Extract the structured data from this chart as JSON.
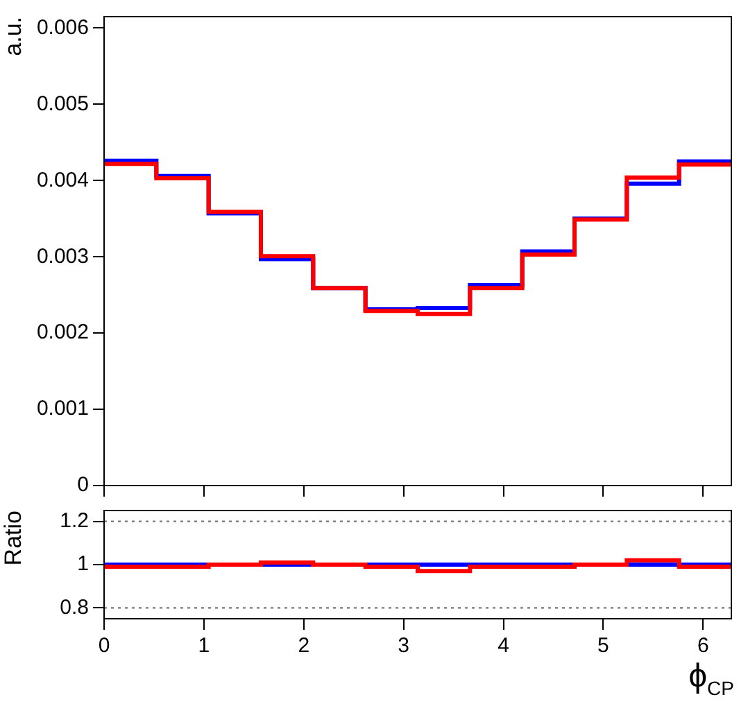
{
  "chart_data": [
    {
      "type": "histogram",
      "ylabel": "a.u.",
      "bins": [
        0,
        0.5236,
        1.0472,
        1.5708,
        2.0944,
        2.618,
        3.1416,
        3.6652,
        4.1888,
        4.7124,
        5.236,
        5.7596,
        6.2832
      ],
      "series": [
        {
          "color": "#0000ff",
          "values": [
            0.00426,
            0.00406,
            0.00357,
            0.00297,
            0.00259,
            0.00231,
            0.00233,
            0.00263,
            0.00307,
            0.0035,
            0.00396,
            0.00425
          ]
        },
        {
          "color": "#ff0000",
          "values": [
            0.00422,
            0.00403,
            0.00359,
            0.00301,
            0.00259,
            0.00229,
            0.00225,
            0.00259,
            0.00303,
            0.00349,
            0.00404,
            0.00421
          ]
        }
      ],
      "xlim": [
        0,
        6.2832
      ],
      "xticks": [
        0,
        1,
        2,
        3,
        4,
        5,
        6
      ],
      "ylim": [
        0,
        0.00615
      ],
      "yticks": [
        0,
        0.001,
        0.002,
        0.003,
        0.004,
        0.005,
        0.006
      ],
      "tick_labels": "y"
    },
    {
      "type": "histogram",
      "ylabel": "Ratio",
      "xlabel": "ϕ$_{CP}$",
      "bins": [
        0,
        0.5236,
        1.0472,
        1.5708,
        2.0944,
        2.618,
        3.1416,
        3.6652,
        4.1888,
        4.7124,
        5.236,
        5.7596,
        6.2832
      ],
      "series": [
        {
          "color": "#0000ff",
          "values": [
            1,
            1,
            1,
            1,
            1,
            1,
            1,
            1,
            1,
            1,
            1,
            1
          ]
        },
        {
          "color": "#ff0000",
          "values": [
            0.99,
            0.99,
            1.0,
            1.01,
            1.0,
            0.99,
            0.97,
            0.99,
            0.99,
            1.0,
            1.02,
            0.99
          ]
        }
      ],
      "xlim": [
        0,
        6.2832
      ],
      "xticks": [
        0,
        1,
        2,
        3,
        4,
        5,
        6
      ],
      "ylim": [
        0.75,
        1.25
      ],
      "yticks": [
        0.8,
        1,
        1.2
      ],
      "ref_lines": [
        {
          "axis": "y",
          "value": 0.8,
          "line_style": "dotted",
          "color": "#777777"
        },
        {
          "axis": "y",
          "value": 1.2,
          "line_style": "dotted",
          "color": "#777777"
        }
      ]
    }
  ]
}
